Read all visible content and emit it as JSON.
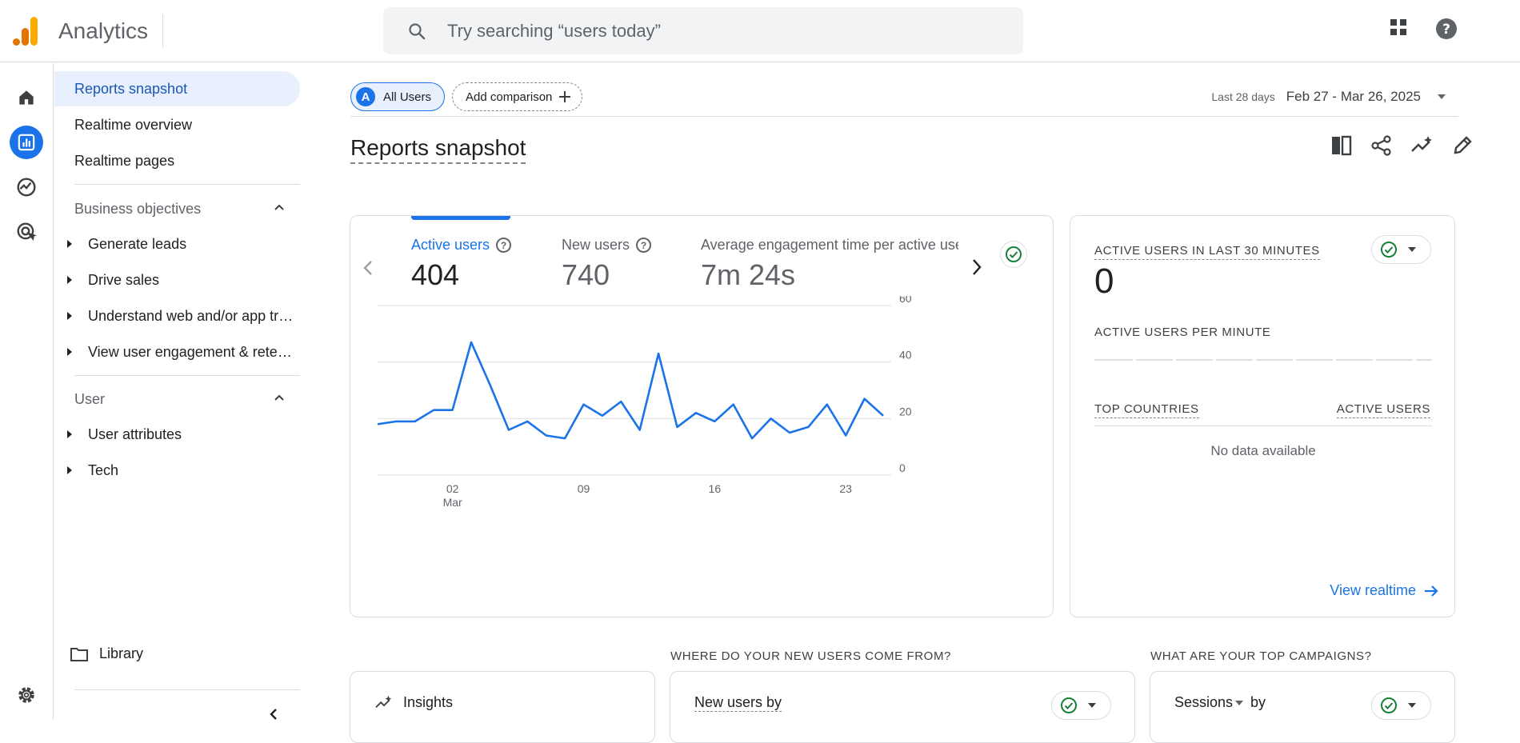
{
  "app": {
    "title": "Analytics"
  },
  "search": {
    "placeholder": "Try searching “users today”"
  },
  "left_nav": {
    "items": [
      "Reports snapshot",
      "Realtime overview",
      "Realtime pages"
    ],
    "sections": [
      {
        "title": "Business objectives",
        "items": [
          "Generate leads",
          "Drive sales",
          "Understand web and/or app traffic",
          "View user engagement & retention"
        ]
      },
      {
        "title": "User",
        "items": [
          "User attributes",
          "Tech"
        ]
      }
    ],
    "library": "Library"
  },
  "comparison": {
    "all_users_avatar": "A",
    "all_users": "All Users",
    "add_comparison": "Add comparison"
  },
  "date_range": {
    "label": "Last 28 days",
    "value": "Feb 27 - Mar 26, 2025"
  },
  "page_title": "Reports snapshot",
  "metrics": [
    {
      "label": "Active users",
      "value": "404"
    },
    {
      "label": "New users",
      "value": "740"
    },
    {
      "label": "Average engagement time per active user",
      "value": "7m 24s"
    }
  ],
  "chart_data": {
    "type": "line",
    "series": [
      {
        "name": "Active users",
        "values": [
          18,
          19,
          19,
          23,
          23,
          47,
          32,
          16,
          19,
          14,
          13,
          25,
          21,
          26,
          16,
          43,
          17,
          22,
          19,
          25,
          13,
          20,
          15,
          17,
          25,
          14,
          27,
          21
        ]
      }
    ],
    "x_tick_labels": [
      {
        "index": 4,
        "label": "02",
        "sublabel": "Mar"
      },
      {
        "index": 11,
        "label": "09"
      },
      {
        "index": 18,
        "label": "16"
      },
      {
        "index": 25,
        "label": "23"
      }
    ],
    "y_ticks": [
      0,
      20,
      40,
      60
    ],
    "ylim": [
      0,
      60
    ],
    "grid": true,
    "color": "#1a73e8"
  },
  "realtime": {
    "title": "ACTIVE USERS IN LAST 30 MINUTES",
    "value": "0",
    "per_minute": "ACTIVE USERS PER MINUTE",
    "col_countries": "TOP COUNTRIES",
    "col_active": "ACTIVE USERS",
    "no_data": "No data available",
    "view_link": "View realtime"
  },
  "bottom": {
    "insights": "Insights",
    "new_users_q": "WHERE DO YOUR NEW USERS COME FROM?",
    "new_users_by": "New users by",
    "campaigns_q": "WHAT ARE YOUR TOP CAMPAIGNS?",
    "sessions_by": "by",
    "sessions": "Sessions"
  },
  "colors": {
    "accent": "#1a73e8",
    "logo_orange": "#e37400",
    "logo_yellow": "#f9ab00",
    "success": "#188038"
  }
}
